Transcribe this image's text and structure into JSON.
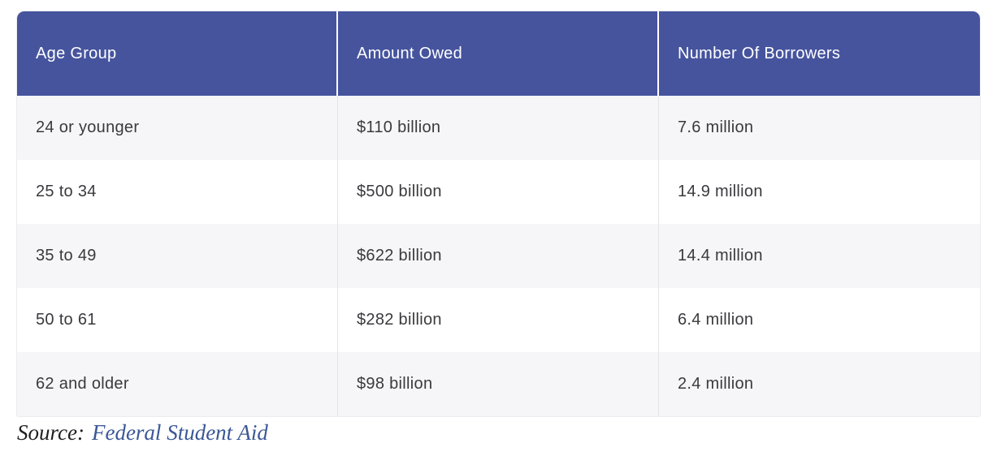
{
  "table": {
    "columns": [
      {
        "label": "Age Group"
      },
      {
        "label": "Amount Owed"
      },
      {
        "label": "Number Of Borrowers"
      }
    ],
    "rows": [
      {
        "cells": [
          "24 or younger",
          "$110 billion",
          "7.6 million"
        ]
      },
      {
        "cells": [
          "25 to 34",
          "$500 billion",
          "14.9 million"
        ]
      },
      {
        "cells": [
          "35 to 49",
          "$622 billion",
          "14.4 million"
        ]
      },
      {
        "cells": [
          "50 to 61",
          "$282 billion",
          "6.4 million"
        ]
      },
      {
        "cells": [
          "62 and older",
          "$98 billion",
          "2.4 million"
        ]
      }
    ]
  },
  "source": {
    "label": "Source:",
    "link_label": "Federal Student Aid"
  },
  "colors": {
    "header_background": "#46549e",
    "header_text": "#ffffff",
    "row_alt_background": "#f6f6f8",
    "row_background": "#ffffff",
    "body_text": "#3a3a3e",
    "divider": "#e4e4e9",
    "link": "#3a5795"
  },
  "chart_data": {
    "type": "table",
    "title": "",
    "columns": [
      "Age Group",
      "Amount Owed",
      "Number Of Borrowers"
    ],
    "rows": [
      [
        "24 or younger",
        "$110 billion",
        "7.6 million"
      ],
      [
        "25 to 34",
        "$500 billion",
        "14.9 million"
      ],
      [
        "35 to 49",
        "$622 billion",
        "14.4 million"
      ],
      [
        "50 to 61",
        "$282 billion",
        "6.4 million"
      ],
      [
        "62 and older",
        "$98 billion",
        "2.4 million"
      ]
    ],
    "amount_owed_billions": [
      110,
      500,
      622,
      282,
      98
    ],
    "borrowers_millions": [
      7.6,
      14.9,
      14.4,
      6.4,
      2.4
    ],
    "source": "Federal Student Aid"
  }
}
